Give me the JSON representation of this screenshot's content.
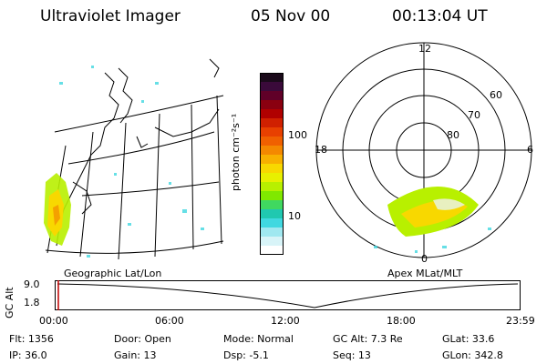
{
  "header": {
    "instrument": "Ultraviolet Imager",
    "date": "05 Nov 00",
    "time": "00:13:04 UT"
  },
  "colorbar": {
    "unit_label": "photon cm⁻²s⁻¹",
    "ticks": [
      "100",
      "10"
    ],
    "colors": [
      "#1a0a1a",
      "#3a0a3a",
      "#600028",
      "#8a0010",
      "#b00000",
      "#d02000",
      "#e84000",
      "#f06000",
      "#f48800",
      "#f8b000",
      "#f8d800",
      "#e8f000",
      "#b8f000",
      "#80e800",
      "#40d860",
      "#20c8b0",
      "#40d8e0",
      "#a0e8f0",
      "#d8f4f8",
      "#ffffff"
    ]
  },
  "geo_panel": {
    "label": "Geographic Lat/Lon"
  },
  "polar_panel": {
    "label": "Apex MLat/MLT",
    "mlt_labels": [
      "12",
      "18",
      "6",
      "0"
    ],
    "lat_labels": [
      "60",
      "70",
      "80"
    ]
  },
  "altitude_plot": {
    "axis_label": "GC Alt",
    "y_ticks": [
      "9.0",
      "1.8"
    ],
    "x_ticks": [
      "00:00",
      "06:00",
      "12:00",
      "18:00",
      "23:59"
    ]
  },
  "info": {
    "flt": "Flt: 1356",
    "ip": "IP: 36.0",
    "door": "Door: Open",
    "gain": "Gain: 13",
    "mode": "Mode: Normal",
    "dsp": "Dsp:    -5.1",
    "gcalt": "GC Alt: 7.3 Re",
    "seq": "Seq: 13",
    "glat": "GLat:  33.6",
    "glon": "GLon: 342.8"
  }
}
